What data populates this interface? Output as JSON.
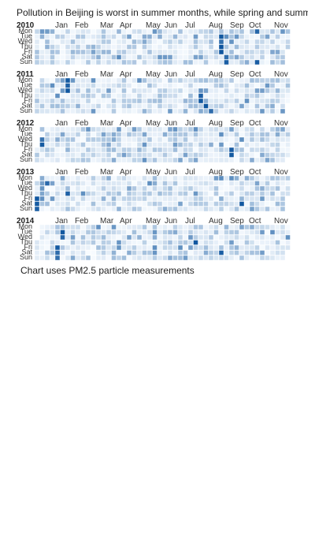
{
  "chart_data": {
    "type": "heatmap",
    "title": "Pollution in Beijing is worst in summer months, while spring and summer",
    "footnote": "Chart uses PM2.5 particle measurements",
    "day_labels": [
      "Mon",
      "Tue",
      "Wed",
      "Thu",
      "Fri",
      "Sat",
      "Sun"
    ],
    "color_scale": {
      "low": "#f7fbff",
      "high": "#08519c"
    },
    "years": [
      {
        "year": "2010",
        "months": [
          "Jan",
          "Feb",
          "Mar",
          "Apr",
          "May",
          "Jun",
          "Jul",
          "Aug",
          "Sep",
          "Oct",
          "Nov"
        ],
        "hotspots": [
          [
            43,
            0
          ],
          [
            36,
            1
          ],
          [
            36,
            2
          ],
          [
            36,
            3
          ],
          [
            36,
            4
          ],
          [
            37,
            5
          ],
          [
            37,
            6
          ],
          [
            43,
            6
          ]
        ]
      },
      {
        "year": "2011",
        "months": [
          "Jan",
          "Feb",
          "Mar",
          "Apr",
          "May",
          "Jun",
          "Jul",
          "Aug",
          "Sep",
          "Oct",
          "Nov"
        ],
        "hotspots": [
          [
            6,
            0
          ],
          [
            6,
            1
          ],
          [
            6,
            2
          ],
          [
            32,
            3
          ],
          [
            32,
            4
          ],
          [
            33,
            5
          ],
          [
            34,
            6
          ]
        ]
      },
      {
        "year": "2012",
        "months": [
          "Jan",
          "Feb",
          "Mar",
          "Apr",
          "May",
          "Jun",
          "Jul",
          "Aug",
          "Sep",
          "Oct",
          "Nov"
        ],
        "hotspots": [
          [
            1,
            2
          ],
          [
            1,
            3
          ],
          [
            38,
            4
          ],
          [
            38,
            5
          ]
        ]
      },
      {
        "year": "2013",
        "months": [
          "Jan",
          "Feb",
          "Mar",
          "Apr",
          "May",
          "Jun",
          "Jul",
          "Aug",
          "Sep",
          "Oct",
          "Nov"
        ],
        "hotspots": [
          [
            0,
            4
          ],
          [
            0,
            5
          ],
          [
            0,
            6
          ],
          [
            2,
            1
          ],
          [
            6,
            3
          ],
          [
            40,
            5
          ]
        ]
      },
      {
        "year": "2014",
        "months": [
          "Jan",
          "Feb",
          "Mar",
          "Apr",
          "May",
          "Jun",
          "Jul",
          "Aug",
          "Sep",
          "Oct",
          "Nov"
        ],
        "hotspots": [
          [
            5,
            1
          ],
          [
            5,
            2
          ],
          [
            4,
            4
          ],
          [
            4,
            5
          ],
          [
            4,
            6
          ],
          [
            31,
            3
          ],
          [
            36,
            5
          ]
        ]
      }
    ]
  }
}
